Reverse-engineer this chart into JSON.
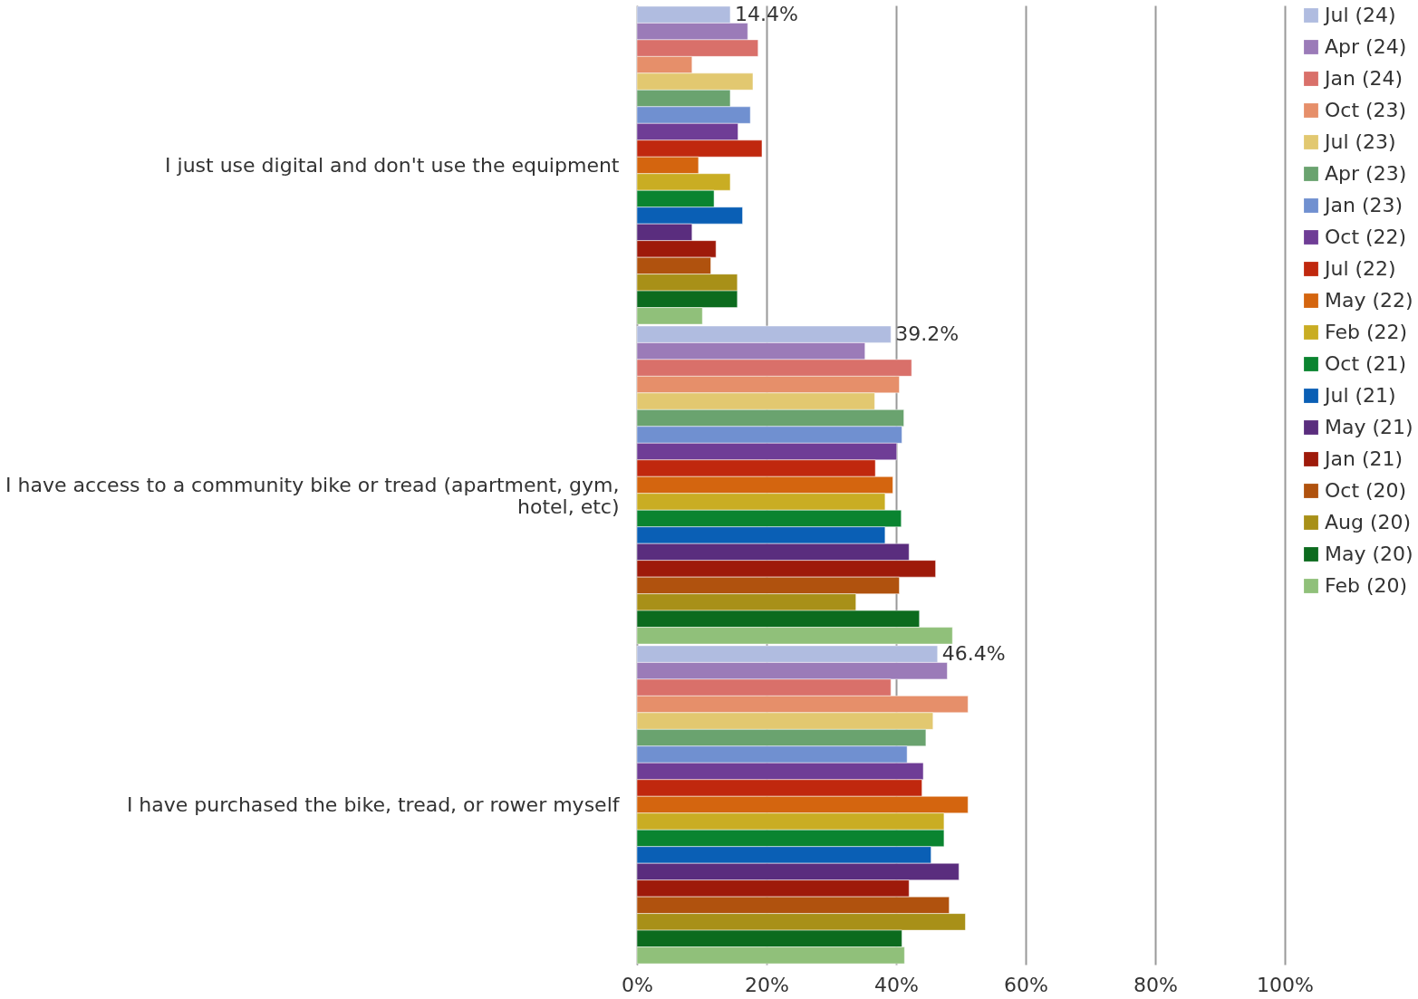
{
  "chart_data": {
    "type": "bar",
    "orientation": "horizontal",
    "categories": [
      "I just use digital and don't use the equipment",
      "I have access to a community bike or tread (apartment, gym, hotel, etc)",
      "I have purchased the bike, tread, or rower myself"
    ],
    "series": [
      {
        "name": "Jul (24)",
        "color": "#b0bce0",
        "values": [
          14.4,
          39.2,
          46.4
        ],
        "value_labels": [
          "14.4%",
          "39.2%",
          "46.4%"
        ]
      },
      {
        "name": "Apr (24)",
        "color": "#9b7bb8",
        "values": [
          17.1,
          35.2,
          47.9
        ]
      },
      {
        "name": "Jan (24)",
        "color": "#d9706a",
        "values": [
          18.7,
          42.4,
          39.2
        ]
      },
      {
        "name": "Oct (23)",
        "color": "#e68f6a",
        "values": [
          8.5,
          40.5,
          51.1
        ]
      },
      {
        "name": "Jul (23)",
        "color": "#e2c870",
        "values": [
          17.9,
          36.7,
          45.7
        ]
      },
      {
        "name": "Apr (23)",
        "color": "#6aa36f",
        "values": [
          14.4,
          41.2,
          44.6
        ]
      },
      {
        "name": "Jan (23)",
        "color": "#7090d0",
        "values": [
          17.5,
          40.9,
          41.7
        ]
      },
      {
        "name": "Oct (22)",
        "color": "#6f3d96",
        "values": [
          15.6,
          40.1,
          44.2
        ]
      },
      {
        "name": "Jul (22)",
        "color": "#c0280e",
        "values": [
          19.3,
          36.8,
          44.0
        ]
      },
      {
        "name": "May (22)",
        "color": "#d4650f",
        "values": [
          9.5,
          39.5,
          51.1
        ]
      },
      {
        "name": "Feb (22)",
        "color": "#c9ad23",
        "values": [
          14.4,
          38.3,
          47.4
        ]
      },
      {
        "name": "Oct (21)",
        "color": "#0a8430",
        "values": [
          11.9,
          40.8,
          47.4
        ]
      },
      {
        "name": "Jul (21)",
        "color": "#0a5fb5",
        "values": [
          16.3,
          38.3,
          45.4
        ]
      },
      {
        "name": "May (21)",
        "color": "#5a2d7e",
        "values": [
          8.5,
          42.0,
          49.7
        ]
      },
      {
        "name": "Jan (21)",
        "color": "#9e1a0a",
        "values": [
          12.2,
          46.1,
          42.0
        ]
      },
      {
        "name": "Oct (20)",
        "color": "#b0520e",
        "values": [
          11.4,
          40.5,
          48.2
        ]
      },
      {
        "name": "Aug (20)",
        "color": "#a89018",
        "values": [
          15.5,
          33.8,
          50.7
        ]
      },
      {
        "name": "May (20)",
        "color": "#0c6b1e",
        "values": [
          15.5,
          43.6,
          40.9
        ]
      },
      {
        "name": "Feb (20)",
        "color": "#90c07a",
        "values": [
          10.1,
          48.7,
          41.3
        ]
      }
    ],
    "xlim": [
      0,
      100
    ],
    "xticks": [
      {
        "value": 0,
        "label": "0%"
      },
      {
        "value": 20,
        "label": "20%"
      },
      {
        "value": 40,
        "label": "40%"
      },
      {
        "value": 60,
        "label": "60%"
      },
      {
        "value": 80,
        "label": "80%"
      },
      {
        "value": 100,
        "label": "100%"
      }
    ],
    "grid": "x",
    "legend": "right"
  }
}
